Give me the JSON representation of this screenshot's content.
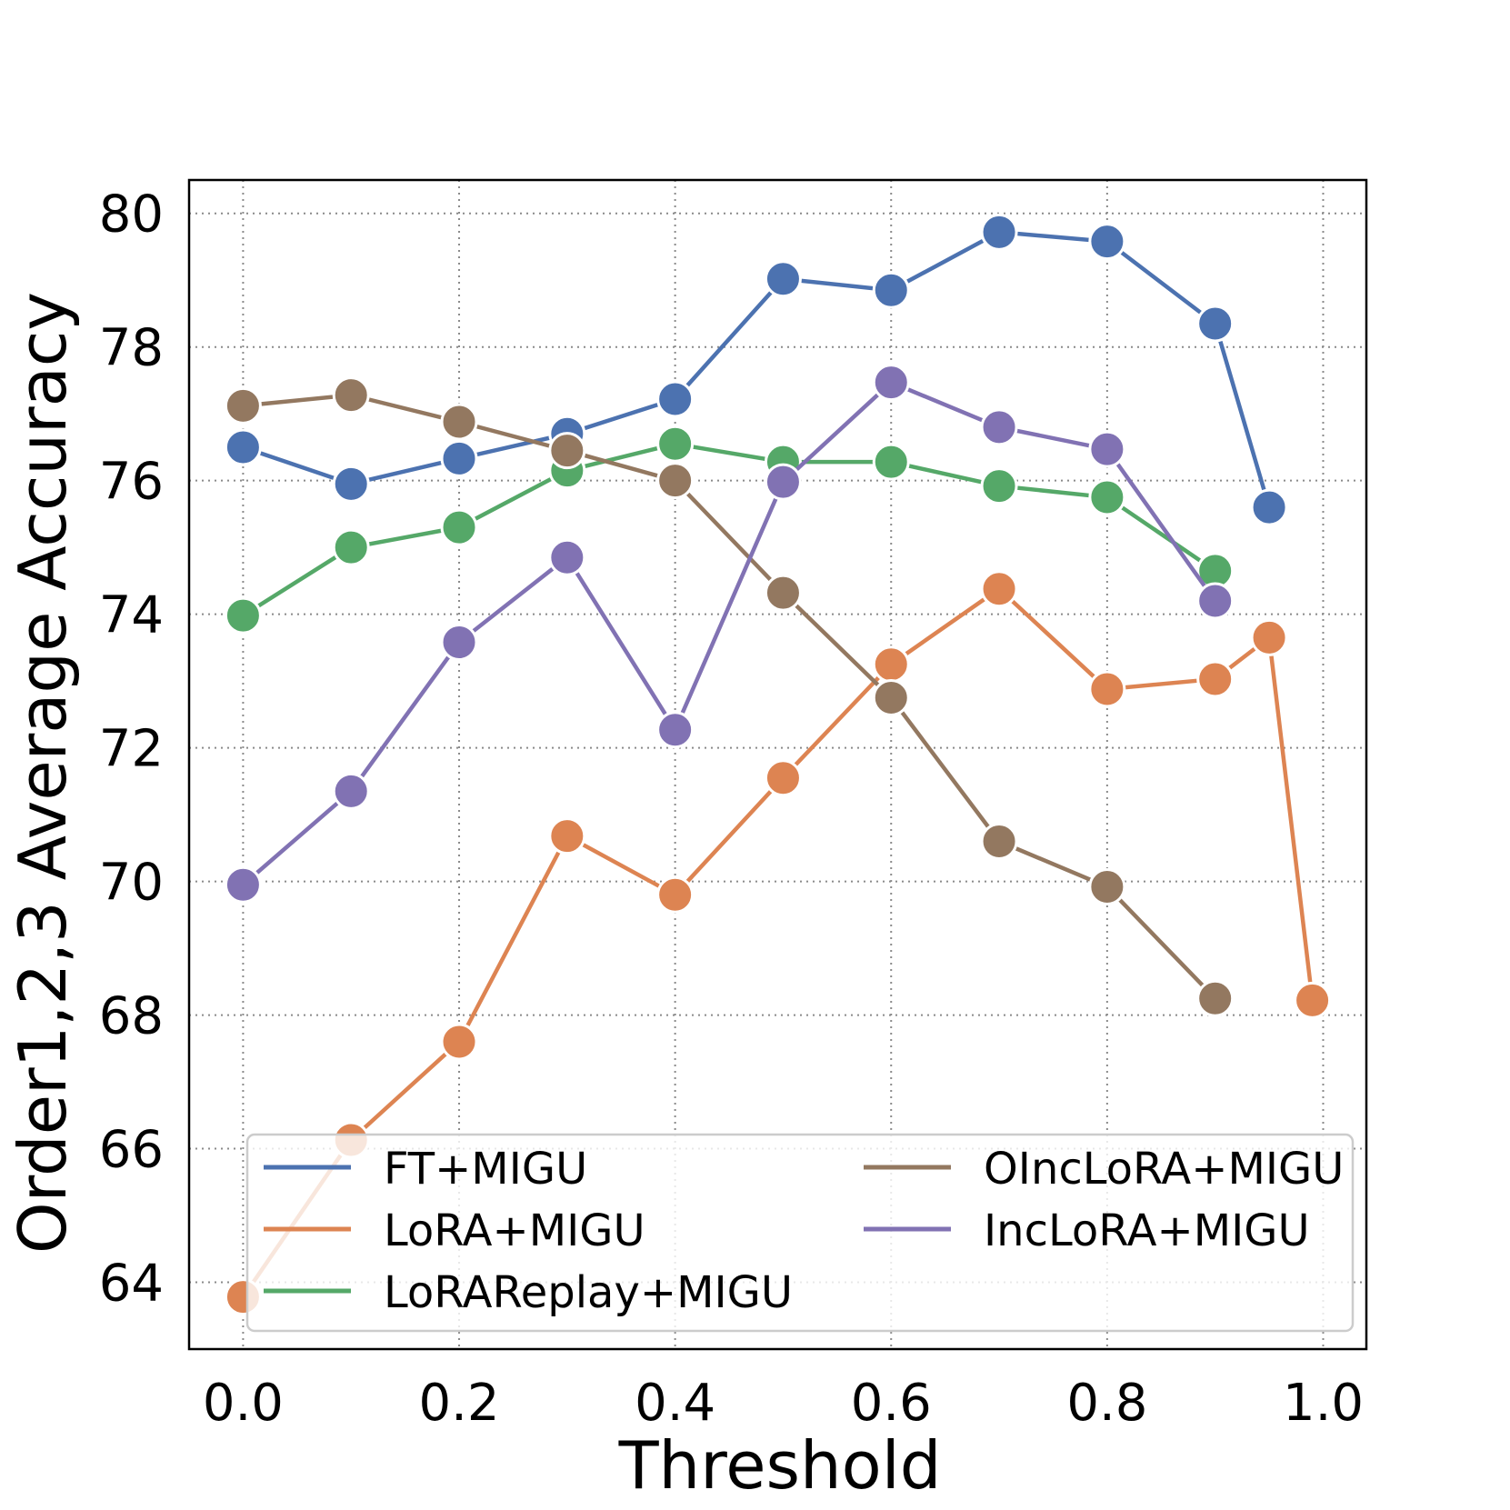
{
  "chart_data": {
    "type": "line",
    "title": "",
    "xlabel": "Threshold",
    "ylabel": "Order1,2,3 Average Accuracy",
    "xlim": [
      -0.05,
      1.04
    ],
    "ylim": [
      63.0,
      80.5
    ],
    "xticks": [
      0.0,
      0.2,
      0.4,
      0.6,
      0.8,
      1.0
    ],
    "xtick_labels": [
      "0.0",
      "0.2",
      "0.4",
      "0.6",
      "0.8",
      "1.0"
    ],
    "yticks": [
      64,
      66,
      68,
      70,
      72,
      74,
      76,
      78,
      80
    ],
    "ytick_labels": [
      "64",
      "66",
      "68",
      "70",
      "72",
      "74",
      "76",
      "78",
      "80"
    ],
    "grid": true,
    "legend_position": "lower-center",
    "series": [
      {
        "name": "FT+MIGU",
        "color": "#4c72b0",
        "x": [
          0.0,
          0.1,
          0.2,
          0.3,
          0.4,
          0.5,
          0.6,
          0.7,
          0.8,
          0.9,
          0.95
        ],
        "y": [
          76.5,
          75.95,
          76.33,
          76.7,
          77.22,
          79.02,
          78.85,
          79.72,
          79.58,
          78.35,
          75.6
        ]
      },
      {
        "name": "LoRA+MIGU",
        "color": "#dd8452",
        "x": [
          0.0,
          0.1,
          0.2,
          0.3,
          0.4,
          0.5,
          0.6,
          0.7,
          0.8,
          0.9,
          0.95,
          0.99
        ],
        "y": [
          63.78,
          66.13,
          67.6,
          70.68,
          69.8,
          71.55,
          73.25,
          74.38,
          72.88,
          73.03,
          73.65,
          68.22
        ]
      },
      {
        "name": "LoRAReplay+MIGU",
        "color": "#55a868",
        "x": [
          0.0,
          0.1,
          0.2,
          0.3,
          0.4,
          0.5,
          0.6,
          0.7,
          0.8,
          0.9
        ],
        "y": [
          73.98,
          75.0,
          75.3,
          76.15,
          76.55,
          76.28,
          76.28,
          75.92,
          75.75,
          74.65
        ]
      },
      {
        "name": "OIncLoRA+MIGU",
        "color": "#937860",
        "x": [
          0.0,
          0.1,
          0.2,
          0.3,
          0.4,
          0.5,
          0.6,
          0.7,
          0.8,
          0.9
        ],
        "y": [
          77.12,
          77.28,
          76.88,
          76.45,
          76.0,
          74.32,
          72.75,
          70.6,
          69.92,
          68.25
        ]
      },
      {
        "name": "IncLoRA+MIGU",
        "color": "#8172b3",
        "x": [
          0.0,
          0.1,
          0.2,
          0.3,
          0.4,
          0.5,
          0.6,
          0.7,
          0.8,
          0.9
        ],
        "y": [
          69.95,
          71.35,
          73.58,
          74.85,
          72.27,
          75.98,
          77.47,
          76.8,
          76.47,
          74.2
        ]
      }
    ]
  }
}
